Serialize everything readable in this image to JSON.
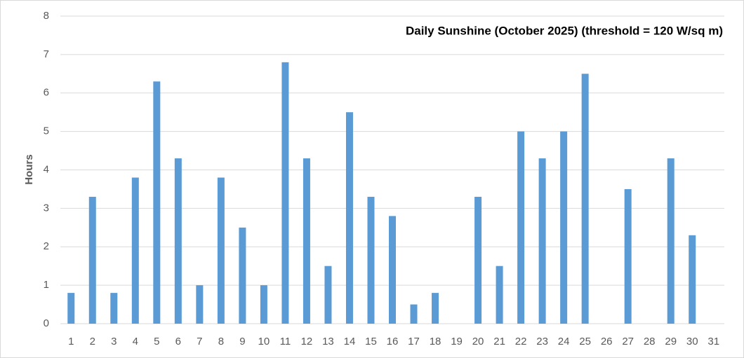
{
  "chart_data": {
    "type": "bar",
    "title": "Daily Sunshine (October 2025) (threshold = 120 W/sq m)",
    "y_label": "Hours",
    "categories": [
      "1",
      "2",
      "3",
      "4",
      "5",
      "6",
      "7",
      "8",
      "9",
      "10",
      "11",
      "12",
      "13",
      "14",
      "15",
      "16",
      "17",
      "18",
      "19",
      "20",
      "21",
      "22",
      "23",
      "24",
      "25",
      "26",
      "27",
      "28",
      "29",
      "30",
      "31"
    ],
    "values": [
      0.8,
      3.3,
      0.8,
      3.8,
      6.3,
      4.3,
      1.0,
      3.8,
      2.5,
      1.0,
      6.8,
      4.3,
      1.5,
      5.5,
      3.3,
      2.8,
      0.5,
      0.8,
      0,
      3.3,
      1.5,
      5.0,
      4.3,
      5.0,
      6.5,
      0,
      3.5,
      0,
      4.3,
      2.3,
      0
    ],
    "color": "#5b9bd5",
    "ylim": [
      0,
      8
    ],
    "yticks": [
      0,
      1,
      2,
      3,
      4,
      5,
      6,
      7,
      8
    ],
    "grid": true
  }
}
